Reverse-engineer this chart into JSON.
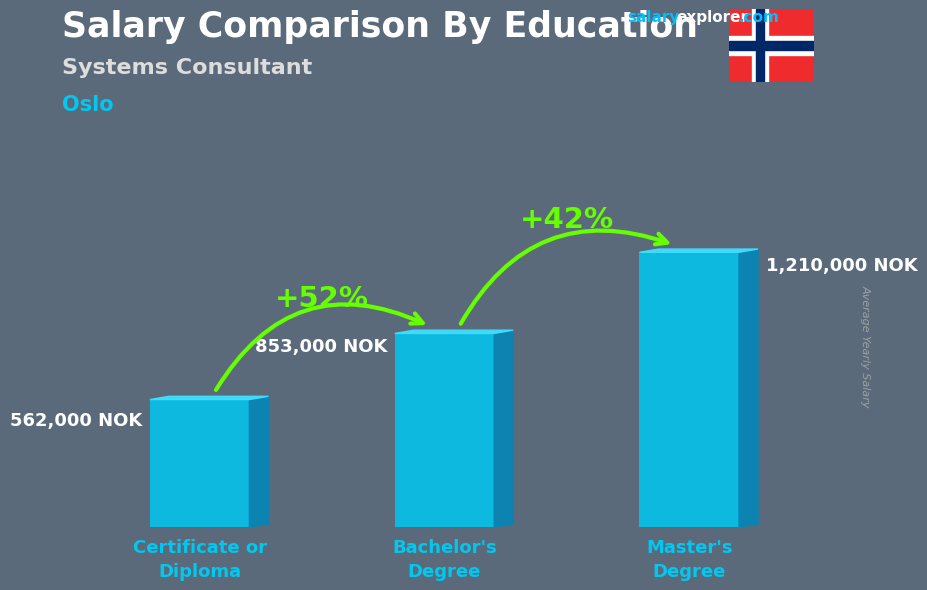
{
  "title": "Salary Comparison By Education",
  "subtitle": "Systems Consultant",
  "city": "Oslo",
  "ylabel": "Average Yearly Salary",
  "categories": [
    "Certificate or\nDiploma",
    "Bachelor's\nDegree",
    "Master's\nDegree"
  ],
  "values": [
    562000,
    853000,
    1210000
  ],
  "value_labels": [
    "562,000 NOK",
    "853,000 NOK",
    "1,210,000 NOK"
  ],
  "pct_labels": [
    "+52%",
    "+42%"
  ],
  "bar_color": "#00C8F0",
  "bar_color_side": "#0088BB",
  "bar_color_top": "#40DFFF",
  "pct_color": "#66FF00",
  "title_color": "#FFFFFF",
  "subtitle_color": "#DDDDDD",
  "city_color": "#00C8F0",
  "value_label_color": "#FFFFFF",
  "xtick_color": "#00C8F0",
  "bg_color": "#5a6a7a",
  "ylabel_color": "#AAAAAA",
  "watermark_blue": "#00BFFF",
  "watermark_white": "#FFFFFF",
  "ylim": [
    0,
    1600000
  ],
  "bar_width": 0.13,
  "x_positions": [
    0.18,
    0.5,
    0.82
  ],
  "title_fontsize": 25,
  "subtitle_fontsize": 16,
  "city_fontsize": 15,
  "value_label_fontsize": 13,
  "pct_fontsize": 21,
  "xtick_fontsize": 13
}
